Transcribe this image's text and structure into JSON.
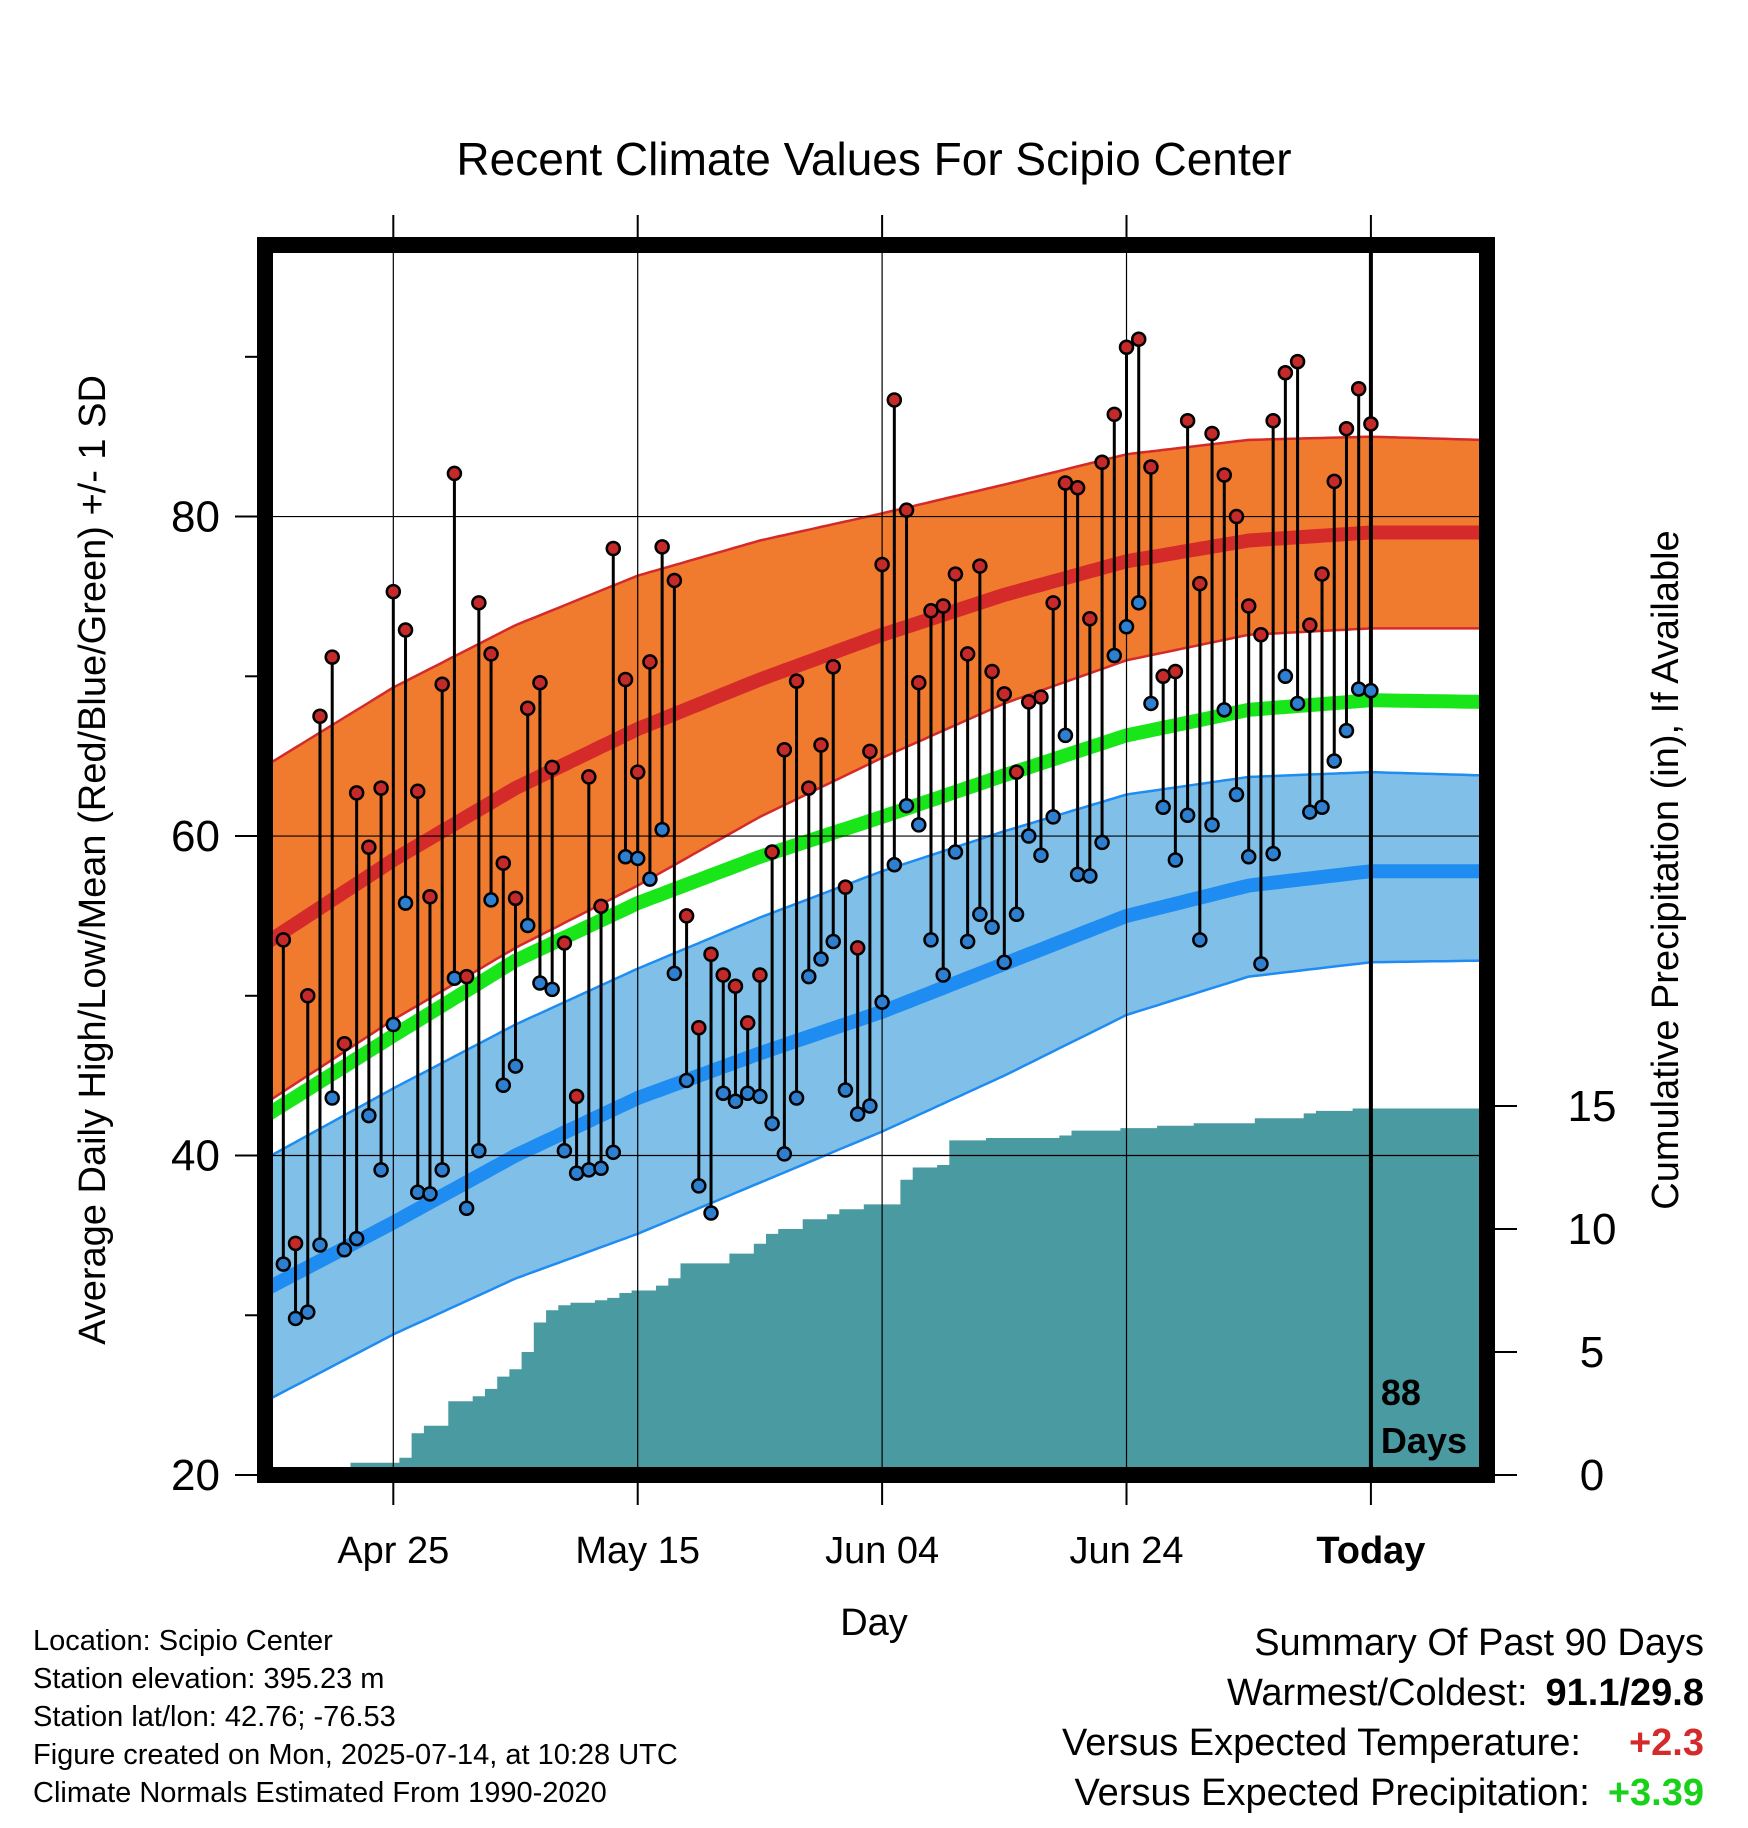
{
  "chart_data": {
    "type": "line",
    "title": "Recent Climate Values For Scipio Center",
    "xlabel": "Day",
    "ylabel": "Average Daily High/Low/Mean (Red/Blue/Green) +/- 1 SD",
    "ylabel_right": "Cumulative Precipitation (in), If Available",
    "ylim": [
      20,
      97
    ],
    "y_ticks": [
      "20",
      "40",
      "60",
      "80"
    ],
    "y2lim": [
      0,
      50
    ],
    "y2_ticks": [
      "0",
      "5",
      "10",
      "15"
    ],
    "x_range_days_before_today": [
      -90.5,
      9.5
    ],
    "x_ticks": [
      {
        "label": "Apr 25",
        "day": -80
      },
      {
        "label": "May 15",
        "day": -60
      },
      {
        "label": "Jun 04",
        "day": -40
      },
      {
        "label": "Jun 24",
        "day": -20
      },
      {
        "label": "Today",
        "day": 0
      }
    ],
    "today_label": [
      "88",
      "Days"
    ],
    "grid": true,
    "normals": {
      "days": [
        -90,
        -80,
        -70,
        -60,
        -50,
        -40,
        -30,
        -20,
        -10,
        0,
        9
      ],
      "high_mean": [
        53.5,
        58.5,
        63.0,
        66.7,
        69.8,
        72.6,
        75.1,
        77.2,
        78.5,
        79.0,
        79.0
      ],
      "high_upper": [
        64.6,
        69.3,
        73.2,
        76.3,
        78.5,
        80.2,
        82.0,
        83.9,
        84.8,
        85.0,
        84.8
      ],
      "high_lower": [
        43.5,
        48.5,
        53.0,
        56.9,
        61.2,
        64.9,
        68.3,
        71.0,
        72.6,
        73.0,
        73.0
      ],
      "mean": [
        42.7,
        47.5,
        52.2,
        55.8,
        58.7,
        61.2,
        63.8,
        66.3,
        67.9,
        68.5,
        68.4
      ],
      "low_mean": [
        31.8,
        35.8,
        40.0,
        43.6,
        46.4,
        49.0,
        52.0,
        55.0,
        56.9,
        57.8,
        57.8
      ],
      "low_upper": [
        40.0,
        44.2,
        48.2,
        51.7,
        54.9,
        57.8,
        60.3,
        62.6,
        63.7,
        64.0,
        63.8
      ],
      "low_lower": [
        24.8,
        28.8,
        32.3,
        35.1,
        38.3,
        41.5,
        45.0,
        48.8,
        51.2,
        52.1,
        52.2
      ]
    },
    "series": [
      {
        "name": "High",
        "color": "#c42a2a",
        "values": [
          53.5,
          34.5,
          50.0,
          67.5,
          71.2,
          47.0,
          62.7,
          59.3,
          63.0,
          75.3,
          72.9,
          62.8,
          56.2,
          69.5,
          82.7,
          51.2,
          74.6,
          71.4,
          58.3,
          56.1,
          68.0,
          69.6,
          64.3,
          53.3,
          43.7,
          63.7,
          55.6,
          78.0,
          69.8,
          64.0,
          70.9,
          78.1,
          76.0,
          55.0,
          48.0,
          52.6,
          51.3,
          50.6,
          48.3,
          51.3,
          59.0,
          65.4,
          69.7,
          63.0,
          65.7,
          70.6,
          56.8,
          53.0,
          65.3,
          77.0,
          87.3,
          80.4,
          69.6,
          74.1,
          74.4,
          76.4,
          71.4,
          76.9,
          70.3,
          68.9,
          64.0,
          68.4,
          68.7,
          74.6,
          82.1,
          81.8,
          73.6,
          83.4,
          86.4,
          90.6,
          91.1,
          83.1,
          70.0,
          70.3,
          86.0,
          75.8,
          85.2,
          82.6,
          80.0,
          74.4,
          72.6,
          86.0,
          89.0,
          89.7,
          73.2,
          76.4,
          82.2,
          85.5,
          88.0,
          85.8
        ]
      },
      {
        "name": "Low",
        "color": "#2e7fd0",
        "values": [
          33.2,
          29.8,
          30.2,
          34.4,
          43.6,
          34.1,
          34.8,
          42.5,
          39.1,
          48.2,
          55.8,
          37.7,
          37.6,
          39.1,
          51.1,
          36.7,
          40.3,
          56.0,
          44.4,
          45.6,
          54.4,
          50.8,
          50.4,
          40.3,
          38.9,
          39.1,
          39.2,
          40.2,
          58.7,
          58.6,
          57.3,
          60.4,
          51.4,
          44.7,
          38.1,
          36.4,
          43.9,
          43.4,
          43.9,
          43.7,
          42.0,
          40.1,
          43.6,
          51.2,
          52.3,
          53.4,
          44.1,
          42.6,
          43.1,
          49.6,
          58.2,
          61.9,
          60.7,
          53.5,
          51.3,
          59.0,
          53.4,
          55.1,
          54.3,
          52.1,
          55.1,
          60.0,
          58.8,
          61.2,
          66.3,
          57.6,
          57.5,
          59.6,
          71.3,
          73.1,
          74.6,
          68.3,
          61.8,
          58.5,
          61.3,
          53.5,
          60.7,
          67.9,
          62.6,
          58.7,
          52.0,
          58.9,
          70.0,
          68.3,
          61.5,
          61.8,
          64.7,
          66.6,
          69.2,
          69.1
        ]
      },
      {
        "name": "Cumulative Precipitation",
        "color": "#4a9aa1",
        "values": [
          0.0,
          0.0,
          0.0,
          0.0,
          0.3,
          0.3,
          0.5,
          0.5,
          0.5,
          0.5,
          0.7,
          1.7,
          2.0,
          2.0,
          3.0,
          3.0,
          3.2,
          3.5,
          4.0,
          4.3,
          5.0,
          6.2,
          6.7,
          6.9,
          7.0,
          7.0,
          7.1,
          7.2,
          7.4,
          7.5,
          7.5,
          7.7,
          8.0,
          8.6,
          8.6,
          8.6,
          8.6,
          9.0,
          9.0,
          9.4,
          9.8,
          10.0,
          10.0,
          10.4,
          10.4,
          10.6,
          10.8,
          10.8,
          11.0,
          11.0,
          11.0,
          12.0,
          12.5,
          12.5,
          12.6,
          13.6,
          13.6,
          13.6,
          13.7,
          13.7,
          13.7,
          13.7,
          13.7,
          13.7,
          13.8,
          14.0,
          14.0,
          14.0,
          14.0,
          14.1,
          14.1,
          14.1,
          14.2,
          14.2,
          14.2,
          14.3,
          14.3,
          14.3,
          14.3,
          14.3,
          14.5,
          14.5,
          14.5,
          14.5,
          14.7,
          14.8,
          14.8,
          14.8,
          14.9,
          14.9
        ]
      }
    ]
  },
  "info": {
    "location": "Location: Scipio Center",
    "elevation": "Station elevation: 395.23 m",
    "latlon": "Station lat/lon: 42.76; -76.53",
    "created": "Figure created on Mon, 2025-07-14, at 10:28 UTC",
    "normals": "Climate Normals Estimated From 1990-2020"
  },
  "summary": {
    "title": "Summary Of Past 90 Days",
    "warm_cold_label": "Warmest/Coldest:",
    "warm_cold_value": "91.1/29.8",
    "temp_label": "Versus Expected Temperature:",
    "temp_value": "+2.3",
    "temp_color": "#d42a2a",
    "precip_label": "Versus Expected Precipitation:",
    "precip_value": "+3.39",
    "precip_color": "#19d119"
  },
  "colors": {
    "high_band": "#f07a2e",
    "high_mean": "#d42a2a",
    "high_edge": "#d42a2a",
    "mean": "#19e619",
    "low_band": "#80c0e8",
    "low_mean": "#1e8cf0",
    "low_edge": "#1e8cf0",
    "precip": "#4a9aa1",
    "high_marker": "#c42a2a",
    "low_marker": "#2e7fd0"
  }
}
